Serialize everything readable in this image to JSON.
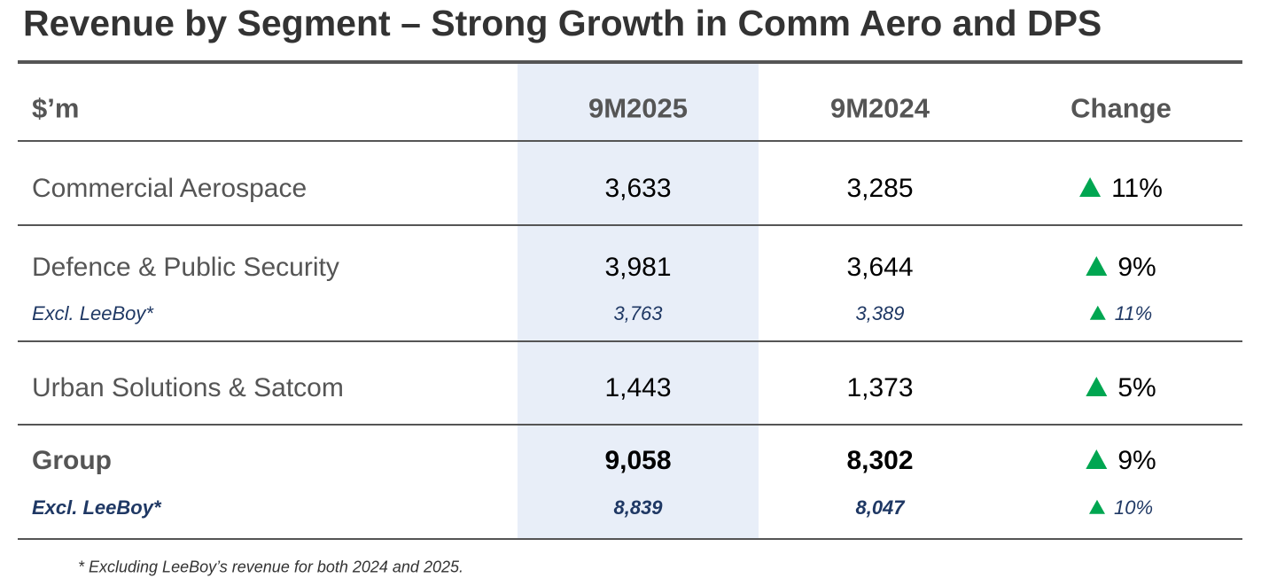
{
  "title": "Revenue by Segment – Strong Growth in Comm Aero and DPS",
  "table": {
    "header": [
      "$’m",
      "9M2025",
      "9M2024",
      "Change"
    ],
    "rows": [
      [
        "Commercial Aerospace",
        "3,633",
        "3,285",
        "11%"
      ],
      [
        "Defence & Public Security",
        "3,981",
        "3,644",
        "9%"
      ],
      [
        "Excl. LeeBoy*",
        "3,763",
        "3,389",
        "11%"
      ],
      [
        "Urban Solutions & Satcom",
        "1,443",
        "1,373",
        "5%"
      ],
      [
        "Group",
        "9,058",
        "8,302",
        "9%"
      ],
      [
        "Excl. LeeBoy*",
        "8,839",
        "8,047",
        "10%"
      ]
    ]
  },
  "footnote": "* Excluding LeeBoy’s revenue for both 2024 and 2025."
}
